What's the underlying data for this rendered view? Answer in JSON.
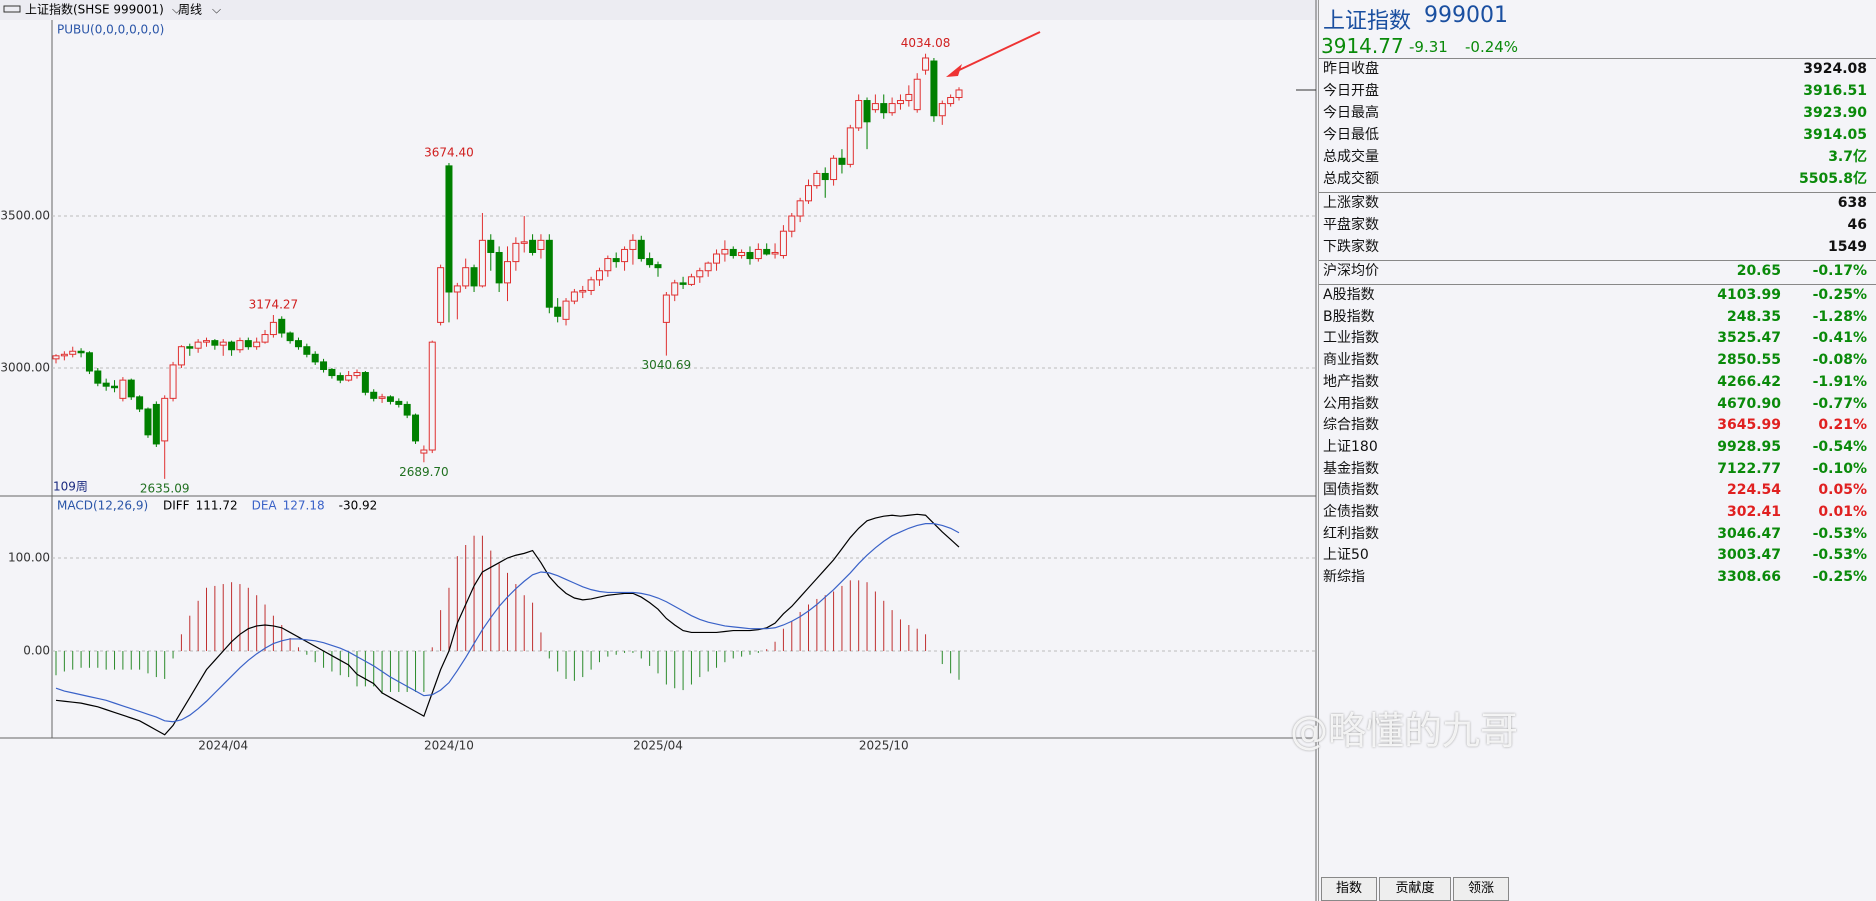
{
  "toolbar": {
    "symbol": "上证指数(SHSE 999001)",
    "period": "周线"
  },
  "chart_data": [
    {
      "type": "candlestick",
      "indicator": "PUBU(0,0,0,0,0,0)",
      "count_label": "109周",
      "up_color": "#e03030",
      "down_color": "#008000",
      "categories": [
        null,
        null,
        null,
        null,
        null,
        null,
        null,
        null,
        null,
        null,
        null,
        null,
        null,
        null,
        null,
        null,
        null,
        null,
        null,
        null,
        "2024/04",
        null,
        null,
        null,
        null,
        null,
        null,
        null,
        null,
        null,
        null,
        null,
        null,
        null,
        null,
        null,
        null,
        null,
        null,
        null,
        null,
        null,
        null,
        null,
        null,
        null,
        null,
        "2024/10",
        null,
        null,
        null,
        null,
        null,
        null,
        null,
        null,
        null,
        null,
        null,
        null,
        null,
        null,
        null,
        null,
        null,
        null,
        null,
        null,
        null,
        null,
        null,
        null,
        "2025/04",
        null,
        null,
        null,
        null,
        null,
        null,
        null,
        null,
        null,
        null,
        null,
        null,
        null,
        null,
        null,
        null,
        null,
        null,
        null,
        null,
        null,
        null,
        null,
        null,
        null,
        null,
        "2025/10",
        null,
        null,
        null,
        null,
        null,
        null,
        null,
        null,
        null,
        null
      ],
      "candles": [
        [
          3030,
          3045,
          3015,
          3040
        ],
        [
          3040,
          3055,
          3025,
          3045
        ],
        [
          3045,
          3070,
          3035,
          3055
        ],
        [
          3055,
          3065,
          3035,
          3050
        ],
        [
          3050,
          3055,
          2980,
          2990
        ],
        [
          2990,
          3000,
          2940,
          2950
        ],
        [
          2950,
          2965,
          2925,
          2940
        ],
        [
          2940,
          2960,
          2920,
          2935
        ],
        [
          2900,
          2970,
          2890,
          2960
        ],
        [
          2960,
          2965,
          2895,
          2905
        ],
        [
          2905,
          2910,
          2855,
          2865
        ],
        [
          2865,
          2870,
          2770,
          2780
        ],
        [
          2880,
          2890,
          2740,
          2750
        ],
        [
          2760,
          2910,
          2635.09,
          2900
        ],
        [
          2900,
          3020,
          2890,
          3010
        ],
        [
          3010,
          3075,
          3000,
          3070
        ],
        [
          3070,
          3080,
          3040,
          3065
        ],
        [
          3065,
          3095,
          3050,
          3085
        ],
        [
          3085,
          3100,
          3070,
          3090
        ],
        [
          3090,
          3095,
          3060,
          3075
        ],
        [
          3075,
          3095,
          3040,
          3085
        ],
        [
          3085,
          3090,
          3040,
          3060
        ],
        [
          3060,
          3100,
          3050,
          3090
        ],
        [
          3090,
          3100,
          3060,
          3070
        ],
        [
          3070,
          3100,
          3060,
          3085
        ],
        [
          3085,
          3125,
          3080,
          3110
        ],
        [
          3110,
          3174.27,
          3100,
          3150
        ],
        [
          3160,
          3170,
          3100,
          3115
        ],
        [
          3115,
          3120,
          3080,
          3090
        ],
        [
          3090,
          3100,
          3060,
          3070
        ],
        [
          3070,
          3080,
          3035,
          3045
        ],
        [
          3045,
          3055,
          3010,
          3020
        ],
        [
          3020,
          3030,
          2985,
          2995
        ],
        [
          2995,
          3000,
          2965,
          2975
        ],
        [
          2975,
          2985,
          2950,
          2960
        ],
        [
          2960,
          2990,
          2955,
          2975
        ],
        [
          2975,
          2995,
          2965,
          2985
        ],
        [
          2985,
          2990,
          2910,
          2920
        ],
        [
          2920,
          2930,
          2890,
          2900
        ],
        [
          2900,
          2915,
          2885,
          2905
        ],
        [
          2905,
          2910,
          2880,
          2890
        ],
        [
          2890,
          2900,
          2870,
          2880
        ],
        [
          2880,
          2890,
          2835,
          2845
        ],
        [
          2845,
          2850,
          2750,
          2760
        ],
        [
          2720,
          2745,
          2689.7,
          2730
        ],
        [
          2730,
          3090,
          2720,
          3085
        ],
        [
          3150,
          3340,
          3140,
          3330
        ],
        [
          3665,
          3674.4,
          3150,
          3250
        ],
        [
          3250,
          3280,
          3160,
          3270
        ],
        [
          3270,
          3360,
          3260,
          3330
        ],
        [
          3330,
          3340,
          3250,
          3270
        ],
        [
          3270,
          3510,
          3265,
          3420
        ],
        [
          3420,
          3440,
          3320,
          3380
        ],
        [
          3380,
          3400,
          3250,
          3280
        ],
        [
          3280,
          3400,
          3220,
          3350
        ],
        [
          3350,
          3430,
          3320,
          3410
        ],
        [
          3410,
          3500,
          3380,
          3415
        ],
        [
          3420,
          3440,
          3370,
          3380
        ],
        [
          3390,
          3440,
          3360,
          3420
        ],
        [
          3420,
          3440,
          3180,
          3200
        ],
        [
          3200,
          3230,
          3150,
          3170
        ],
        [
          3160,
          3230,
          3140,
          3220
        ],
        [
          3220,
          3260,
          3210,
          3250
        ],
        [
          3250,
          3270,
          3230,
          3255
        ],
        [
          3255,
          3300,
          3240,
          3290
        ],
        [
          3290,
          3330,
          3270,
          3320
        ],
        [
          3320,
          3370,
          3300,
          3360
        ],
        [
          3360,
          3380,
          3330,
          3350
        ],
        [
          3350,
          3400,
          3320,
          3390
        ],
        [
          3390,
          3440,
          3340,
          3420
        ],
        [
          3420,
          3435,
          3350,
          3360
        ],
        [
          3360,
          3380,
          3330,
          3340
        ],
        [
          3340,
          3350,
          3300,
          3330
        ],
        [
          3150,
          3250,
          3040.69,
          3240
        ],
        [
          3240,
          3290,
          3220,
          3280
        ],
        [
          3280,
          3300,
          3260,
          3275
        ],
        [
          3275,
          3310,
          3270,
          3300
        ],
        [
          3300,
          3330,
          3280,
          3320
        ],
        [
          3320,
          3350,
          3300,
          3345
        ],
        [
          3345,
          3390,
          3320,
          3375
        ],
        [
          3375,
          3420,
          3350,
          3390
        ],
        [
          3390,
          3400,
          3360,
          3370
        ],
        [
          3370,
          3390,
          3360,
          3380
        ],
        [
          3380,
          3400,
          3340,
          3360
        ],
        [
          3360,
          3410,
          3350,
          3390
        ],
        [
          3390,
          3410,
          3370,
          3375
        ],
        [
          3375,
          3410,
          3360,
          3380
        ],
        [
          3370,
          3470,
          3360,
          3450
        ],
        [
          3450,
          3510,
          3430,
          3500
        ],
        [
          3500,
          3560,
          3480,
          3550
        ],
        [
          3550,
          3620,
          3540,
          3600
        ],
        [
          3600,
          3650,
          3590,
          3640
        ],
        [
          3640,
          3660,
          3560,
          3620
        ],
        [
          3620,
          3700,
          3600,
          3690
        ],
        [
          3690,
          3720,
          3640,
          3670
        ],
        [
          3670,
          3800,
          3660,
          3790
        ],
        [
          3790,
          3900,
          3780,
          3880
        ],
        [
          3880,
          3890,
          3720,
          3810
        ],
        [
          3850,
          3900,
          3840,
          3870
        ],
        [
          3870,
          3900,
          3820,
          3840
        ],
        [
          3840,
          3890,
          3830,
          3870
        ],
        [
          3870,
          3900,
          3850,
          3880
        ],
        [
          3880,
          3930,
          3860,
          3900
        ],
        [
          3850,
          3970,
          3840,
          3950
        ],
        [
          3980,
          4034.08,
          3965,
          4020
        ],
        [
          4010,
          4020,
          3810,
          3830
        ],
        [
          3830,
          3880,
          3800,
          3870
        ],
        [
          3870,
          3900,
          3860,
          3890
        ],
        [
          3890,
          3923.9,
          3880,
          3914.77
        ]
      ],
      "annotations": [
        "2635.09",
        "3174.27",
        "2689.70",
        "3674.40",
        "3040.69",
        "4034.08"
      ],
      "ylim": [
        2582,
        4145
      ],
      "yticks": [
        {
          "value": 3500,
          "label": "3500.00"
        },
        {
          "value": 3000,
          "label": "3000.00"
        }
      ],
      "grid": true
    },
    {
      "type": "macd",
      "title": "MACD(12,26,9)",
      "ylim": [
        -93.5,
        165.6
      ],
      "yticks": [
        {
          "value": 100,
          "label": "100.00"
        },
        {
          "value": 0,
          "label": "0.00"
        }
      ],
      "grid": true,
      "series": [
        {
          "name": "DIFF",
          "color": "#000000",
          "values": [
            -53,
            -54,
            -55,
            -56,
            -58,
            -60,
            -63,
            -66,
            -69,
            -72,
            -75,
            -80,
            -85,
            -90,
            -80,
            -65,
            -50,
            -35,
            -20,
            -10,
            0,
            10,
            18,
            24,
            27,
            28,
            27,
            25,
            20,
            15,
            10,
            5,
            0,
            -5,
            -10,
            -15,
            -25,
            -30,
            -35,
            -45,
            -50,
            -55,
            -60,
            -65,
            -70,
            -45,
            -20,
            0,
            30,
            50,
            70,
            85,
            90,
            95,
            100,
            103,
            105,
            108,
            95,
            80,
            70,
            62,
            57,
            55,
            56,
            58,
            60,
            61,
            62,
            62,
            58,
            52,
            45,
            35,
            28,
            22,
            20,
            20,
            20,
            20,
            21,
            22,
            22,
            22,
            23,
            25,
            30,
            40,
            48,
            58,
            68,
            78,
            88,
            98,
            110,
            122,
            132,
            140,
            143,
            145,
            146,
            145,
            146,
            147,
            146,
            137,
            128,
            120,
            111.72
          ]
        },
        {
          "name": "DEA",
          "color": "#3a62c8",
          "values": [
            -40,
            -43,
            -45,
            -47,
            -49,
            -51,
            -53,
            -56,
            -59,
            -62,
            -65,
            -68,
            -71,
            -75,
            -76,
            -74,
            -69,
            -62,
            -54,
            -45,
            -36,
            -27,
            -18,
            -10,
            -3,
            3,
            8,
            11,
            13,
            13,
            12,
            11,
            9,
            6,
            3,
            -1,
            -6,
            -11,
            -16,
            -22,
            -28,
            -33,
            -38,
            -43,
            -48,
            -47,
            -42,
            -34,
            -21,
            -7,
            8,
            23,
            36,
            48,
            58,
            67,
            75,
            82,
            85,
            84,
            81,
            77,
            73,
            69,
            66,
            64,
            63,
            63,
            63,
            63,
            62,
            60,
            57,
            53,
            48,
            43,
            38,
            34,
            31,
            29,
            27,
            26,
            25,
            24,
            24,
            24,
            25,
            28,
            32,
            37,
            43,
            50,
            58,
            66,
            75,
            84,
            94,
            103,
            111,
            118,
            124,
            128,
            132,
            135,
            137,
            137,
            135,
            132,
            127.18
          ]
        }
      ],
      "histogram": {
        "up_color": "#c03030",
        "down_color": "#2a8a2a",
        "values": [
          -26,
          -22,
          -20,
          -18,
          -18,
          -18,
          -20,
          -20,
          -20,
          -20,
          -20,
          -24,
          -28,
          -30,
          -8,
          18,
          38,
          54,
          68,
          70,
          72,
          74,
          72,
          68,
          60,
          50,
          38,
          28,
          14,
          4,
          -4,
          -12,
          -18,
          -22,
          -26,
          -28,
          -38,
          -38,
          -38,
          -46,
          -44,
          -44,
          -44,
          -44,
          -44,
          4,
          44,
          68,
          102,
          114,
          124,
          124,
          108,
          94,
          84,
          72,
          60,
          52,
          20,
          -8,
          -22,
          -30,
          -32,
          -28,
          -20,
          -12,
          -6,
          -4,
          -2,
          -2,
          -8,
          -16,
          -24,
          -36,
          -40,
          -42,
          -36,
          -28,
          -22,
          -18,
          -12,
          -8,
          -6,
          -4,
          -2,
          2,
          10,
          24,
          32,
          42,
          50,
          56,
          60,
          64,
          70,
          76,
          76,
          74,
          64,
          54,
          44,
          34,
          28,
          24,
          18,
          0,
          -14,
          -24,
          -30.92
        ]
      }
    }
  ],
  "quote": {
    "name": "上证指数",
    "code": "999001",
    "price": "3914.77",
    "change": "-9.31",
    "change_pct": "-0.24%",
    "summary": [
      [
        "昨日收盘",
        "3924.08"
      ],
      [
        "今日开盘",
        "3916.51"
      ],
      [
        "今日最高",
        "3923.90"
      ],
      [
        "今日最低",
        "3914.05"
      ],
      [
        "总成交量",
        "3.7亿"
      ],
      [
        "总成交额",
        "5505.8亿"
      ]
    ],
    "breadth": [
      [
        "上涨家数",
        "638"
      ],
      [
        "平盘家数",
        "46"
      ],
      [
        "下跌家数",
        "1549"
      ]
    ],
    "average": [
      "沪深均价",
      "20.65",
      "-0.17%"
    ],
    "indices": [
      [
        "A股指数",
        "4103.99",
        "-0.25%"
      ],
      [
        "B股指数",
        "248.35",
        "-1.28%"
      ],
      [
        "工业指数",
        "3525.47",
        "-0.41%"
      ],
      [
        "商业指数",
        "2850.55",
        "-0.08%"
      ],
      [
        "地产指数",
        "4266.42",
        "-1.91%"
      ],
      [
        "公用指数",
        "4670.90",
        "-0.77%"
      ],
      [
        "综合指数",
        "3645.99",
        "0.21%"
      ],
      [
        "上证180",
        "9928.95",
        "-0.54%"
      ],
      [
        "基金指数",
        "7122.77",
        "-0.10%"
      ],
      [
        "国债指数",
        "224.54",
        "0.05%"
      ],
      [
        "企债指数",
        "302.41",
        "0.01%"
      ],
      [
        "红利指数",
        "3046.47",
        "-0.53%"
      ],
      [
        "上证50",
        "3003.47",
        "-0.53%"
      ],
      [
        "新综指",
        "3308.66",
        "-0.25%"
      ]
    ],
    "tabs": [
      "指数",
      "贡献度",
      "领涨"
    ]
  },
  "watermark": "@略懂的九哥"
}
